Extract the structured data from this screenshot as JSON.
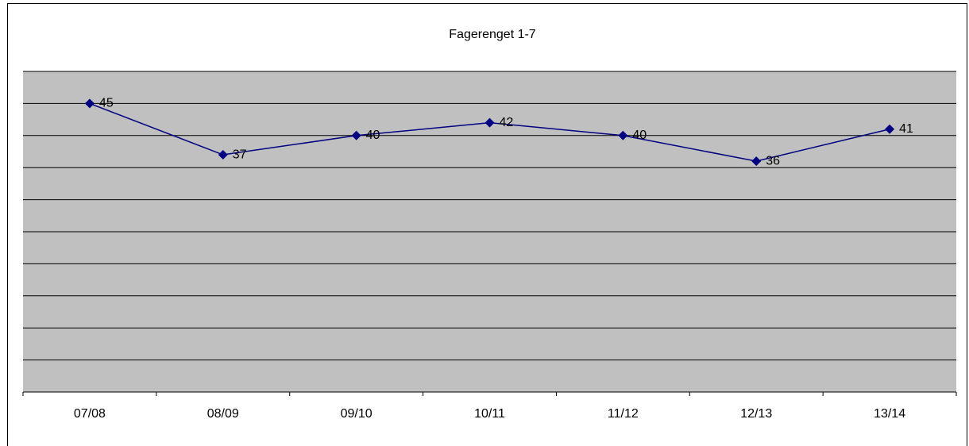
{
  "chart_data": {
    "type": "line",
    "title": "Fagerenget 1-7",
    "categories": [
      "07/08",
      "08/09",
      "09/10",
      "10/11",
      "11/12",
      "12/13",
      "13/14"
    ],
    "series": [
      {
        "color": "#000080",
        "values": [
          45,
          37,
          40,
          42,
          40,
          36,
          41
        ]
      }
    ],
    "ylim": [
      0,
      50
    ],
    "yticks": [
      0,
      5,
      10,
      15,
      20,
      25,
      30,
      35,
      40,
      45,
      50
    ],
    "grid": true,
    "data_labels": true
  }
}
